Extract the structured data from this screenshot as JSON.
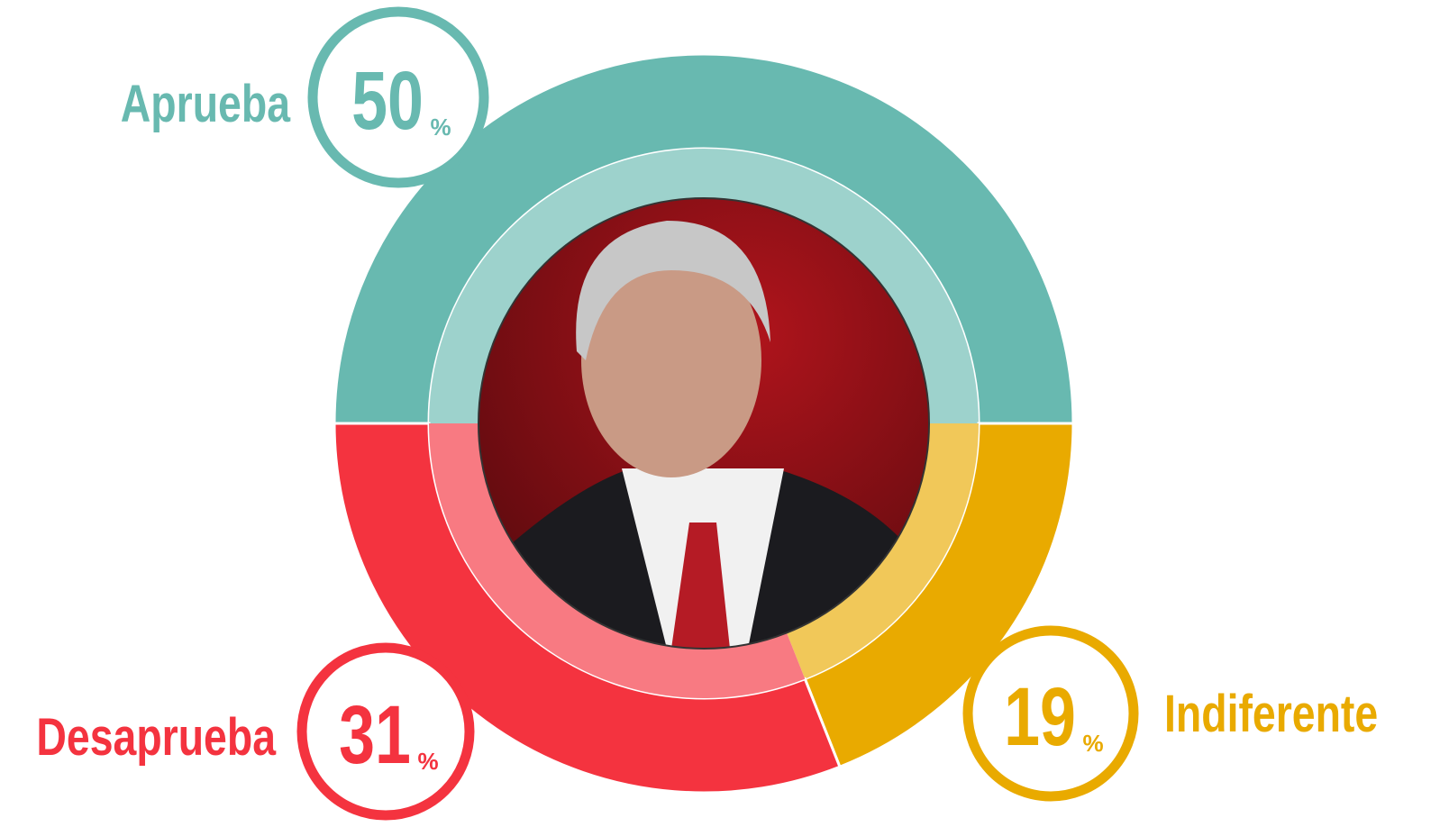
{
  "chart_data": {
    "type": "donut",
    "categories": [
      "Aprueba",
      "Indiferente",
      "Desaprueba"
    ],
    "values": [
      50,
      19,
      31
    ],
    "unit": "%",
    "colors": [
      "#68b9b0",
      "#e9aa00",
      "#f4333f"
    ]
  }
}
